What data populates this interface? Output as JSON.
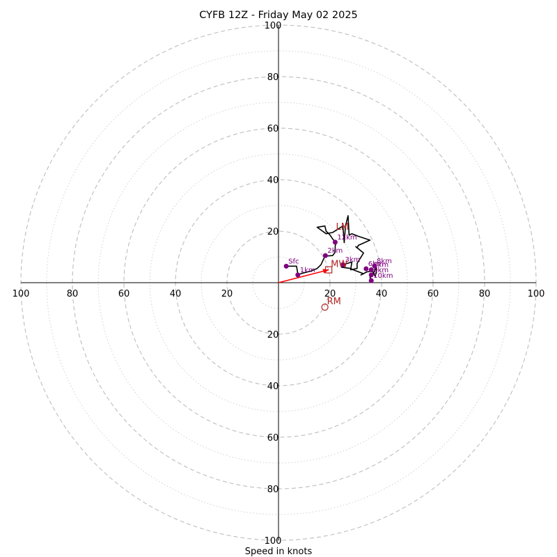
{
  "chart_data": {
    "type": "hodograph",
    "title": "CYFB 12Z - Friday May 02 2025",
    "xlabel": "Speed in knots",
    "max_speed": 100,
    "major_rings": [
      20,
      40,
      60,
      80,
      100
    ],
    "minor_rings": [
      10,
      30,
      50,
      70,
      90
    ],
    "x_tick_labels": [
      "100",
      "80",
      "60",
      "40",
      "20",
      "20",
      "40",
      "60",
      "80",
      "100"
    ],
    "y_tick_labels_top": [
      "20",
      "40",
      "60",
      "80",
      "100"
    ],
    "y_tick_labels_bottom": [
      "20",
      "40",
      "60",
      "80",
      "100"
    ],
    "colors": {
      "trace": "#000000",
      "height_markers": "#800080",
      "storm_motion": "#b22222",
      "mean_wind_vector": "#ff0000",
      "rings": "#bdbdbd"
    },
    "trace": [
      [
        3,
        6.4
      ],
      [
        7,
        6.4
      ],
      [
        7.4,
        4
      ],
      [
        7.4,
        3
      ],
      [
        9,
        3.6
      ],
      [
        12.5,
        4.5
      ],
      [
        15,
        5.5
      ],
      [
        16.5,
        7
      ],
      [
        18,
        10.3
      ],
      [
        21,
        10.5
      ],
      [
        22,
        11.8
      ],
      [
        22,
        12.2
      ],
      [
        22,
        13.8
      ],
      [
        22.2,
        15.5
      ],
      [
        21,
        17
      ],
      [
        20,
        18.5
      ],
      [
        18.5,
        20
      ],
      [
        18,
        22
      ],
      [
        15,
        21.5
      ],
      [
        18.5,
        19
      ],
      [
        21,
        19.5
      ],
      [
        25,
        22
      ],
      [
        25.5,
        15.5
      ],
      [
        26,
        22
      ],
      [
        27,
        26
      ],
      [
        27.4,
        18.5
      ],
      [
        28.5,
        19
      ],
      [
        31,
        18
      ],
      [
        35.5,
        16.5
      ],
      [
        31,
        14.5
      ],
      [
        30.5,
        13.5
      ],
      [
        30,
        14
      ],
      [
        33,
        11.5
      ],
      [
        30.5,
        7.5
      ],
      [
        30.5,
        5.5
      ],
      [
        28,
        5
      ],
      [
        28.5,
        8
      ],
      [
        25,
        7
      ],
      [
        24.5,
        6
      ],
      [
        28,
        5.5
      ],
      [
        29,
        5
      ],
      [
        33,
        3.5
      ],
      [
        32,
        3
      ],
      [
        34.3,
        4.2
      ],
      [
        36.5,
        4.5
      ],
      [
        37.5,
        2.5
      ],
      [
        38,
        4
      ],
      [
        38,
        6
      ],
      [
        36.5,
        3
      ],
      [
        35.5,
        2
      ],
      [
        36,
        1
      ],
      [
        36,
        0.5
      ]
    ],
    "height_markers": [
      {
        "label": "Sfc",
        "u": 3,
        "v": 6.4
      },
      {
        "label": "1km",
        "u": 7.5,
        "v": 3
      },
      {
        "label": "2km",
        "u": 18.2,
        "v": 10.5
      },
      {
        "label": "3km",
        "u": 25,
        "v": 7
      },
      {
        "label": "6km",
        "u": 34,
        "v": 5.4
      },
      {
        "label": "7km",
        "u": 36,
        "v": 5
      },
      {
        "label": "8km",
        "u": 37.3,
        "v": 6.5
      },
      {
        "label": "9km",
        "u": 36,
        "v": 3
      },
      {
        "label": "10km",
        "u": 36,
        "v": 0.8
      },
      {
        "label": "12km",
        "u": 22,
        "v": 15.7
      }
    ],
    "storm_motions": [
      {
        "label": "LM",
        "u": 21.5,
        "v": 19.5,
        "marker": "none"
      },
      {
        "label": "MW",
        "u": 19.5,
        "v": 5,
        "marker": "square"
      },
      {
        "label": "RM",
        "u": 18,
        "v": -9.5,
        "marker": "circle"
      }
    ],
    "mean_wind_vector": {
      "u": 19.5,
      "v": 5
    }
  }
}
